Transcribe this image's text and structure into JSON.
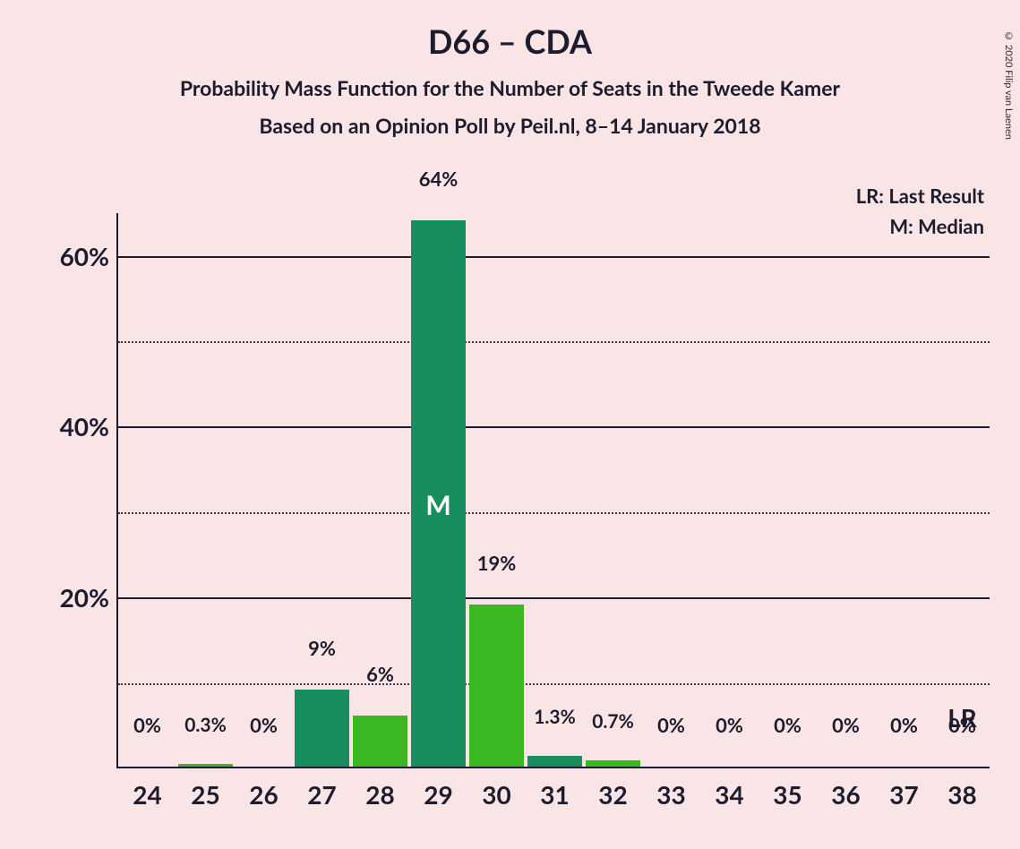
{
  "copyright": "© 2020 Filip van Laenen",
  "title": "D66 – CDA",
  "subtitle1": "Probability Mass Function for the Number of Seats in the Tweede Kamer",
  "subtitle2": "Based on an Opinion Poll by Peil.nl, 8–14 January 2018",
  "legend": {
    "lr": "LR: Last Result",
    "m": "M: Median"
  },
  "chart": {
    "type": "bar",
    "background_color": "#f9e5e5",
    "axis_color": "#1d1b2e",
    "text_color": "#1d1b2e",
    "colors": {
      "dark": "#188e5f",
      "light": "#3bb722"
    },
    "bar_width": 0.95,
    "ylim": [
      0,
      65
    ],
    "yticks_major": [
      20,
      40,
      60
    ],
    "yticks_minor": [
      10,
      30,
      50
    ],
    "ytick_format": "{v}%",
    "categories": [
      24,
      25,
      26,
      27,
      28,
      29,
      30,
      31,
      32,
      33,
      34,
      35,
      36,
      37,
      38
    ],
    "values": [
      0,
      0.3,
      0,
      9,
      6,
      64,
      19,
      1.3,
      0.7,
      0,
      0,
      0,
      0,
      0,
      0
    ],
    "value_labels": [
      "0%",
      "0.3%",
      "0%",
      "9%",
      "6%",
      "64%",
      "19%",
      "1.3%",
      "0.7%",
      "0%",
      "0%",
      "0%",
      "0%",
      "0%",
      "0%"
    ],
    "bar_shades": [
      "dark",
      "light",
      "dark",
      "dark",
      "light",
      "dark",
      "light",
      "dark",
      "light",
      "dark",
      "light",
      "dark",
      "light",
      "dark",
      "light"
    ],
    "median_index": 5,
    "median_marker": "M",
    "lr_index": 14,
    "lr_marker": "LR",
    "label_fontsize_default": 22,
    "label_fontsize_small": 21,
    "xtick_fontsize": 28,
    "ytick_fontsize": 28
  }
}
